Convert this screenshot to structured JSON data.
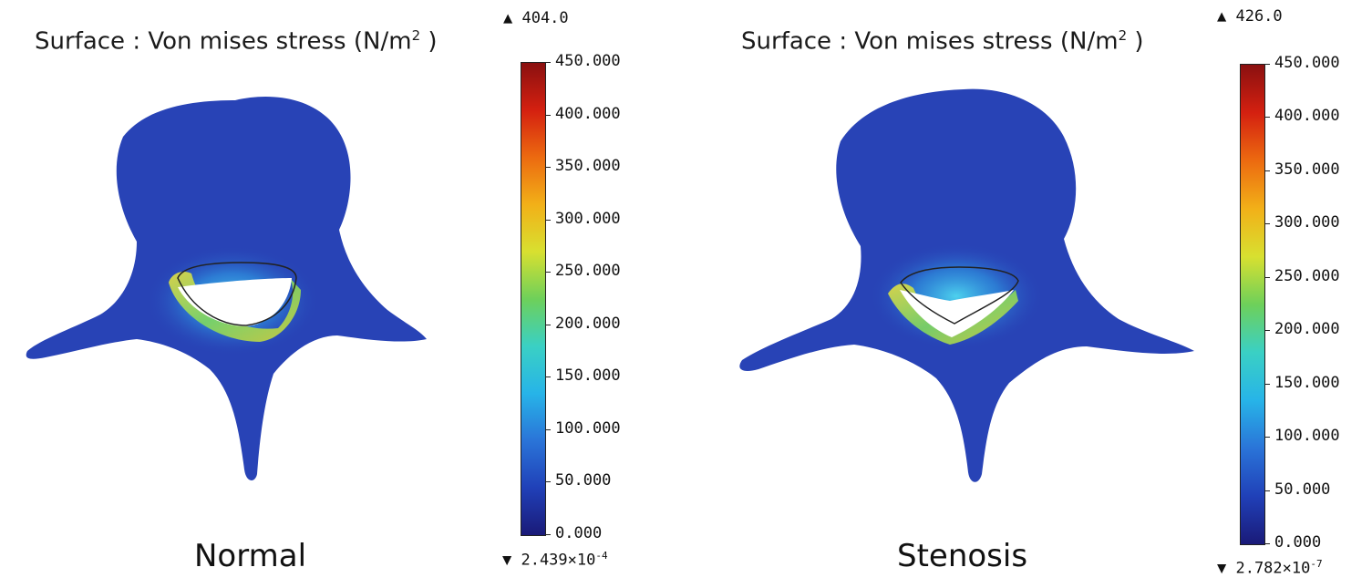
{
  "panels": [
    {
      "title": "Surface : Von mises stress (N/m",
      "title_sup": "2",
      "title_end": " )",
      "label": "Normal",
      "colorbar_max_marker": "▲ 404.0",
      "colorbar_min_marker": "▼ 2.439×10",
      "colorbar_min_exp": "-4",
      "ticks": [
        "450.000",
        "400.000",
        "350.000",
        "300.000",
        "250.000",
        "200.000",
        "150.000",
        "100.000",
        "50.000",
        "0.000"
      ]
    },
    {
      "title": "Surface : Von mises stress (N/m",
      "title_sup": "2",
      "title_end": " )",
      "label": "Stenosis",
      "colorbar_max_marker": "▲ 426.0",
      "colorbar_min_marker": "▼ 2.782×10",
      "colorbar_min_exp": "-7",
      "ticks": [
        "450.000",
        "400.000",
        "350.000",
        "300.000",
        "250.000",
        "200.000",
        "150.000",
        "100.000",
        "50.000",
        "0.000"
      ]
    }
  ],
  "colors": {
    "bone_base": "#2a45b8",
    "bone_dark": "#1f37a8",
    "colormap": [
      "#1a1a78",
      "#2040b8",
      "#2a74d8",
      "#27b4e8",
      "#3ad0c4",
      "#6ed05a",
      "#d8e030",
      "#f2b018",
      "#ec6a10",
      "#d42010",
      "#8a1010"
    ]
  }
}
